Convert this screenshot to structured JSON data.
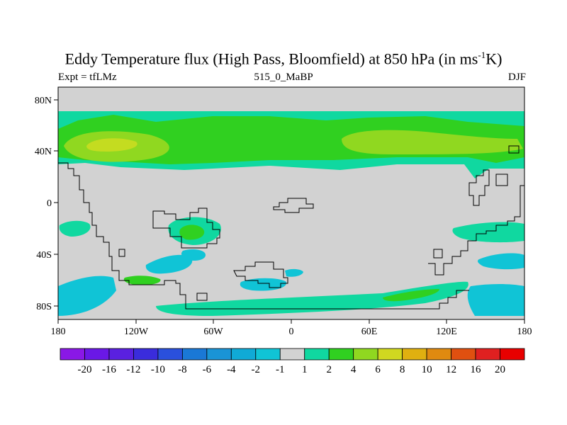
{
  "header": {
    "title_main": "Eddy Temperature flux (High Pass, Bloomfield) at 850 hPa (in ms",
    "title_sup": "-1",
    "title_tail": "K)",
    "left_label": "Expt = tfLMz",
    "center_label": "515_0_MaBP",
    "right_label": "DJF"
  },
  "axes": {
    "x_ticks": [
      "180",
      "120W",
      "60W",
      "0",
      "60E",
      "120E",
      "180"
    ],
    "y_ticks": [
      "80N",
      "40N",
      "0",
      "40S",
      "80S"
    ]
  },
  "colorbar": {
    "labels": [
      "-20",
      "-16",
      "-12",
      "-10",
      "-8",
      "-6",
      "-4",
      "-2",
      "-1",
      "1",
      "2",
      "4",
      "6",
      "8",
      "10",
      "12",
      "16",
      "20"
    ],
    "colors": [
      "#8a18e6",
      "#6a18e6",
      "#5a20e0",
      "#3a2cdc",
      "#2a50dc",
      "#1a78d6",
      "#1a94d6",
      "#10aad6",
      "#10c4d6",
      "#d2d2d2",
      "#10d8a0",
      "#30d020",
      "#90d820",
      "#d0d820",
      "#e0b010",
      "#e08a10",
      "#e05010",
      "#e02020",
      "#e80000"
    ]
  },
  "map": {
    "background_color": "#d2d2d2"
  }
}
